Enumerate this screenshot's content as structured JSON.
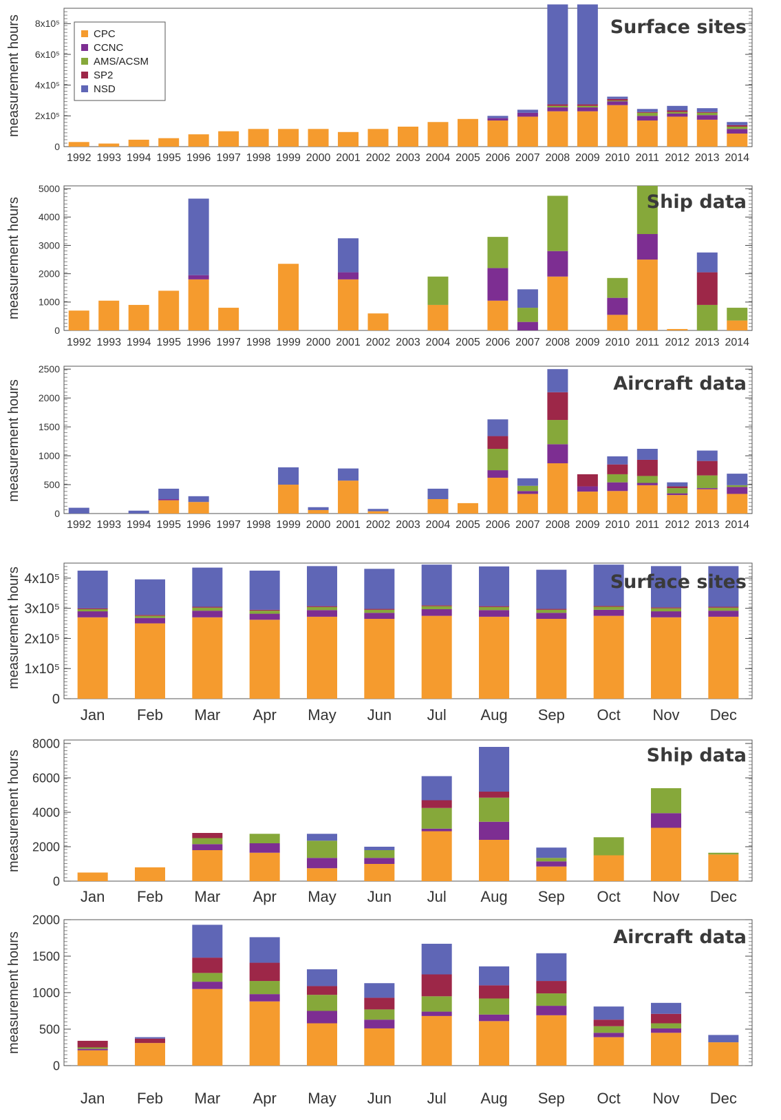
{
  "legend": [
    "CPC",
    "CCNC",
    "AMS/ACSM",
    "SP2",
    "NSD"
  ],
  "colors": {
    "CPC": "#f59b2e",
    "CCNC": "#7d2e92",
    "AMS/ACSM": "#86a83a",
    "SP2": "#9d2748",
    "NSD": "#5f66b6"
  },
  "chart_data": [
    {
      "type": "bar",
      "stacked": true,
      "title": "Surface sites",
      "ylabel": "measurement hours",
      "ylim": [
        0,
        900000
      ],
      "yticks": [
        0,
        200000,
        400000,
        600000,
        800000
      ],
      "ytick_labels": [
        "0",
        "2x10⁵",
        "4x10⁵",
        "6x10⁵",
        "8x10⁵"
      ],
      "legend_placement": "top-left",
      "categories": [
        "1992",
        "1993",
        "1994",
        "1995",
        "1996",
        "1997",
        "1998",
        "1999",
        "2000",
        "2001",
        "2002",
        "2003",
        "2004",
        "2005",
        "2006",
        "2007",
        "2008",
        "2009",
        "2010",
        "2011",
        "2012",
        "2013",
        "2014"
      ],
      "series": [
        {
          "name": "CPC",
          "values": [
            30000,
            20000,
            45000,
            55000,
            80000,
            100000,
            115000,
            115000,
            115000,
            95000,
            115000,
            130000,
            160000,
            180000,
            170000,
            195000,
            230000,
            230000,
            270000,
            170000,
            195000,
            175000,
            85000
          ]
        },
        {
          "name": "CCNC",
          "values": [
            0,
            0,
            0,
            0,
            0,
            0,
            0,
            0,
            0,
            0,
            0,
            0,
            0,
            0,
            15000,
            25000,
            25000,
            25000,
            25000,
            30000,
            20000,
            30000,
            30000
          ]
        },
        {
          "name": "AMS/ACSM",
          "values": [
            0,
            0,
            0,
            0,
            0,
            0,
            0,
            0,
            0,
            0,
            0,
            0,
            0,
            0,
            0,
            0,
            10000,
            10000,
            5000,
            20000,
            10000,
            15000,
            15000
          ]
        },
        {
          "name": "SP2",
          "values": [
            0,
            0,
            0,
            0,
            0,
            0,
            0,
            0,
            0,
            0,
            0,
            0,
            0,
            0,
            0,
            0,
            10000,
            10000,
            10000,
            5000,
            10000,
            5000,
            10000
          ]
        },
        {
          "name": "NSD",
          "values": [
            0,
            0,
            0,
            0,
            0,
            0,
            0,
            0,
            0,
            0,
            0,
            0,
            0,
            0,
            15000,
            20000,
            650000,
            650000,
            15000,
            20000,
            30000,
            25000,
            20000
          ]
        }
      ]
    },
    {
      "type": "bar",
      "stacked": true,
      "title": "Ship data",
      "ylabel": "measurement hours",
      "ylim": [
        0,
        5100
      ],
      "yticks": [
        0,
        1000,
        2000,
        3000,
        4000,
        5000
      ],
      "ytick_labels": [
        "0",
        "1000",
        "2000",
        "3000",
        "4000",
        "5000"
      ],
      "categories": [
        "1992",
        "1993",
        "1994",
        "1995",
        "1996",
        "1997",
        "1998",
        "1999",
        "2000",
        "2001",
        "2002",
        "2003",
        "2004",
        "2005",
        "2006",
        "2007",
        "2008",
        "2009",
        "2010",
        "2011",
        "2012",
        "2013",
        "2014"
      ],
      "series": [
        {
          "name": "CPC",
          "values": [
            700,
            1050,
            900,
            1400,
            1800,
            800,
            0,
            2350,
            0,
            1800,
            600,
            0,
            900,
            0,
            1050,
            0,
            1900,
            0,
            550,
            2500,
            50,
            0,
            350
          ]
        },
        {
          "name": "CCNC",
          "values": [
            0,
            0,
            0,
            0,
            150,
            0,
            0,
            0,
            0,
            250,
            0,
            0,
            0,
            0,
            1150,
            300,
            900,
            0,
            600,
            900,
            0,
            0,
            0
          ]
        },
        {
          "name": "AMS/ACSM",
          "values": [
            0,
            0,
            0,
            0,
            0,
            0,
            0,
            0,
            0,
            0,
            0,
            0,
            1000,
            0,
            1100,
            500,
            1950,
            0,
            700,
            1700,
            0,
            900,
            450
          ]
        },
        {
          "name": "SP2",
          "values": [
            0,
            0,
            0,
            0,
            0,
            0,
            0,
            0,
            0,
            0,
            0,
            0,
            0,
            0,
            0,
            0,
            0,
            0,
            0,
            0,
            0,
            1150,
            0
          ]
        },
        {
          "name": "NSD",
          "values": [
            0,
            0,
            0,
            0,
            2700,
            0,
            0,
            0,
            0,
            1200,
            0,
            0,
            0,
            0,
            0,
            650,
            0,
            0,
            0,
            0,
            0,
            700,
            0
          ]
        }
      ]
    },
    {
      "type": "bar",
      "stacked": true,
      "title": "Aircraft data",
      "ylabel": "measurement hours",
      "ylim": [
        0,
        2550
      ],
      "yticks": [
        0,
        500,
        1000,
        1500,
        2000,
        2500
      ],
      "ytick_labels": [
        "0",
        "500",
        "1000",
        "1500",
        "2000",
        "2500"
      ],
      "categories": [
        "1992",
        "1993",
        "1994",
        "1995",
        "1996",
        "1997",
        "1998",
        "1999",
        "2000",
        "2001",
        "2002",
        "2003",
        "2004",
        "2005",
        "2006",
        "2007",
        "2008",
        "2009",
        "2010",
        "2011",
        "2012",
        "2013",
        "2014"
      ],
      "series": [
        {
          "name": "CPC",
          "values": [
            0,
            0,
            0,
            230,
            200,
            0,
            0,
            500,
            60,
            570,
            40,
            0,
            250,
            180,
            620,
            340,
            870,
            380,
            390,
            490,
            320,
            420,
            340
          ]
        },
        {
          "name": "CCNC",
          "values": [
            0,
            0,
            0,
            20,
            0,
            0,
            0,
            0,
            0,
            0,
            0,
            0,
            0,
            0,
            130,
            50,
            330,
            90,
            150,
            40,
            30,
            20,
            120
          ]
        },
        {
          "name": "AMS/ACSM",
          "values": [
            0,
            0,
            0,
            0,
            0,
            0,
            0,
            0,
            0,
            0,
            0,
            0,
            0,
            0,
            370,
            90,
            420,
            0,
            140,
            120,
            90,
            220,
            30
          ]
        },
        {
          "name": "SP2",
          "values": [
            0,
            0,
            0,
            0,
            0,
            0,
            0,
            0,
            0,
            0,
            0,
            0,
            0,
            0,
            220,
            0,
            480,
            210,
            170,
            280,
            30,
            250,
            0
          ]
        },
        {
          "name": "NSD",
          "values": [
            100,
            0,
            50,
            180,
            100,
            0,
            0,
            300,
            50,
            210,
            40,
            0,
            180,
            0,
            290,
            130,
            400,
            0,
            140,
            190,
            70,
            180,
            200
          ]
        }
      ]
    },
    {
      "type": "bar",
      "stacked": true,
      "title": "Surface sites",
      "ylabel": "measurement hours",
      "ylim": [
        0,
        450000
      ],
      "yticks": [
        0,
        100000,
        200000,
        300000,
        400000
      ],
      "ytick_labels": [
        "0",
        "1x10⁵",
        "2x10⁵",
        "3x10⁵",
        "4x10⁵"
      ],
      "categories": [
        "Jan",
        "Feb",
        "Mar",
        "Apr",
        "May",
        "Jun",
        "Jul",
        "Aug",
        "Sep",
        "Oct",
        "Nov",
        "Dec"
      ],
      "series": [
        {
          "name": "CPC",
          "values": [
            270000,
            250000,
            270000,
            262000,
            272000,
            265000,
            275000,
            272000,
            265000,
            275000,
            270000,
            272000
          ]
        },
        {
          "name": "CCNC",
          "values": [
            20000,
            18000,
            22000,
            20000,
            22000,
            20000,
            22000,
            22000,
            20000,
            20000,
            20000,
            20000
          ]
        },
        {
          "name": "AMS/ACSM",
          "values": [
            7000,
            7000,
            10000,
            10000,
            10000,
            10000,
            10000,
            10000,
            10000,
            10000,
            10000,
            10000
          ]
        },
        {
          "name": "SP2",
          "values": [
            3000,
            3000,
            3000,
            3000,
            3000,
            3000,
            3000,
            3000,
            3000,
            3000,
            3000,
            3000
          ]
        },
        {
          "name": "NSD",
          "values": [
            125000,
            118000,
            130000,
            130000,
            133000,
            133000,
            135000,
            132000,
            130000,
            137000,
            137000,
            135000
          ]
        }
      ]
    },
    {
      "type": "bar",
      "stacked": true,
      "title": "Ship data",
      "ylabel": "measurement hours",
      "ylim": [
        0,
        8200
      ],
      "yticks": [
        0,
        2000,
        4000,
        6000,
        8000
      ],
      "ytick_labels": [
        "0",
        "2000",
        "4000",
        "6000",
        "8000"
      ],
      "categories": [
        "Jan",
        "Feb",
        "Mar",
        "Apr",
        "May",
        "Jun",
        "Jul",
        "Aug",
        "Sep",
        "Oct",
        "Nov",
        "Dec"
      ],
      "series": [
        {
          "name": "CPC",
          "values": [
            500,
            800,
            1800,
            1650,
            750,
            1000,
            2900,
            2400,
            850,
            1500,
            3100,
            1550
          ]
        },
        {
          "name": "CCNC",
          "values": [
            0,
            0,
            350,
            550,
            600,
            350,
            150,
            1050,
            300,
            0,
            850,
            0
          ]
        },
        {
          "name": "AMS/ACSM",
          "values": [
            0,
            0,
            350,
            550,
            1000,
            450,
            1200,
            1400,
            200,
            1050,
            1450,
            100
          ]
        },
        {
          "name": "SP2",
          "values": [
            0,
            0,
            300,
            0,
            0,
            0,
            450,
            350,
            0,
            0,
            0,
            0
          ]
        },
        {
          "name": "NSD",
          "values": [
            0,
            0,
            0,
            0,
            400,
            200,
            1400,
            2600,
            600,
            0,
            0,
            0
          ]
        }
      ]
    },
    {
      "type": "bar",
      "stacked": true,
      "title": "Aircraft data",
      "ylabel": "measurement hours",
      "ylim": [
        0,
        2000
      ],
      "yticks": [
        0,
        500,
        1000,
        1500,
        2000
      ],
      "ytick_labels": [
        "0",
        "500",
        "1000",
        "1500",
        "2000"
      ],
      "categories": [
        "Jan",
        "Feb",
        "Mar",
        "Apr",
        "May",
        "Jun",
        "Jul",
        "Aug",
        "Sep",
        "Oct",
        "Nov",
        "Dec"
      ],
      "series": [
        {
          "name": "CPC",
          "values": [
            210,
            310,
            1050,
            880,
            580,
            510,
            680,
            610,
            690,
            390,
            450,
            320
          ]
        },
        {
          "name": "CCNC",
          "values": [
            20,
            0,
            100,
            100,
            170,
            120,
            60,
            90,
            130,
            60,
            60,
            0
          ]
        },
        {
          "name": "AMS/ACSM",
          "values": [
            20,
            0,
            120,
            180,
            220,
            140,
            210,
            220,
            170,
            90,
            70,
            0
          ]
        },
        {
          "name": "SP2",
          "values": [
            90,
            60,
            210,
            250,
            120,
            160,
            300,
            180,
            170,
            90,
            130,
            0
          ]
        },
        {
          "name": "NSD",
          "values": [
            0,
            20,
            450,
            350,
            230,
            200,
            420,
            260,
            380,
            180,
            150,
            100
          ]
        }
      ]
    }
  ]
}
